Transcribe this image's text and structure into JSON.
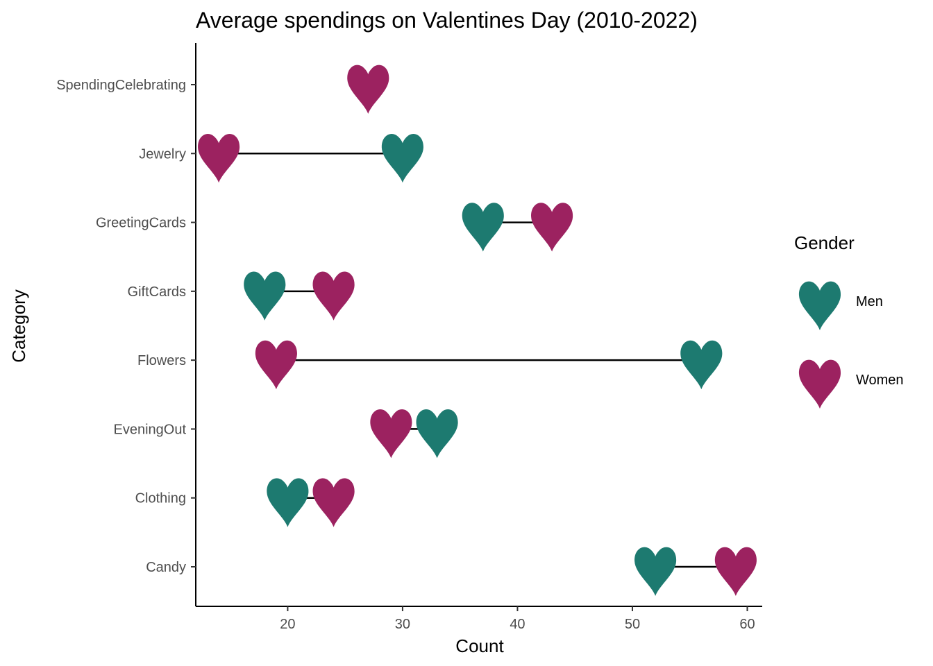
{
  "chart_data": {
    "type": "dumbbell",
    "title": "Average spendings on Valentines Day (2010-2022)",
    "xlabel": "Count",
    "ylabel": "Category",
    "xlim": [
      12.0,
      61.3
    ],
    "x_ticks": [
      20,
      30,
      40,
      50,
      60
    ],
    "grid": false,
    "legend_position": "right",
    "legend_title": "Gender",
    "categories": [
      "Candy",
      "Clothing",
      "EveningOut",
      "Flowers",
      "GiftCards",
      "GreetingCards",
      "Jewelry",
      "SpendingCelebrating"
    ],
    "series": [
      {
        "name": "Men",
        "color": "#1d7a70",
        "values": [
          52,
          20,
          33,
          56,
          18,
          37,
          30,
          null
        ]
      },
      {
        "name": "Women",
        "color": "#9c2260",
        "values": [
          59,
          24,
          29,
          19,
          24,
          43,
          14,
          27
        ]
      }
    ],
    "marker": "heart-icon"
  }
}
